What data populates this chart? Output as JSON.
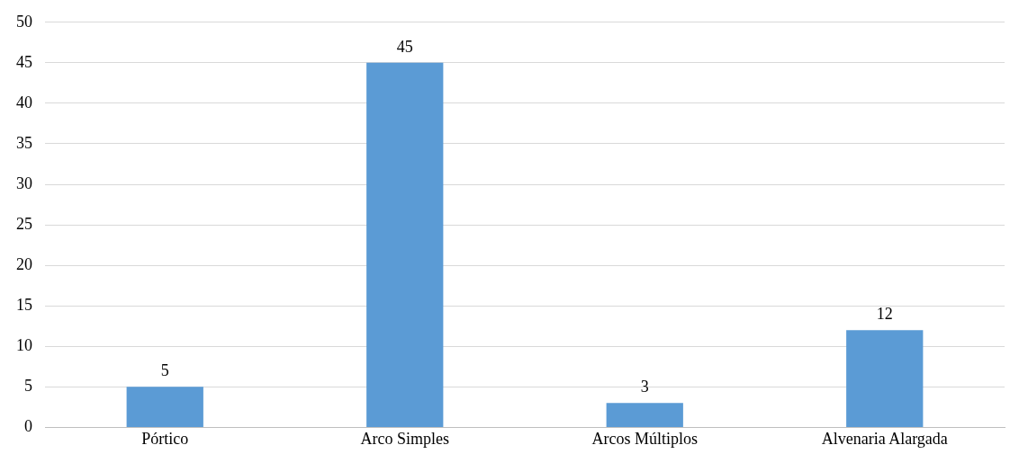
{
  "chart_data": {
    "type": "bar",
    "categories": [
      "Pórtico",
      "Arco Simples",
      "Arcos Múltiplos",
      "Alvenaria Alargada"
    ],
    "values": [
      5,
      45,
      3,
      12
    ],
    "color": "#5b9bd5",
    "ylim": [
      0,
      50
    ],
    "yticks": [
      0,
      5,
      10,
      15,
      20,
      25,
      30,
      35,
      40,
      45,
      50
    ],
    "grid": "y",
    "data_labels": true
  }
}
